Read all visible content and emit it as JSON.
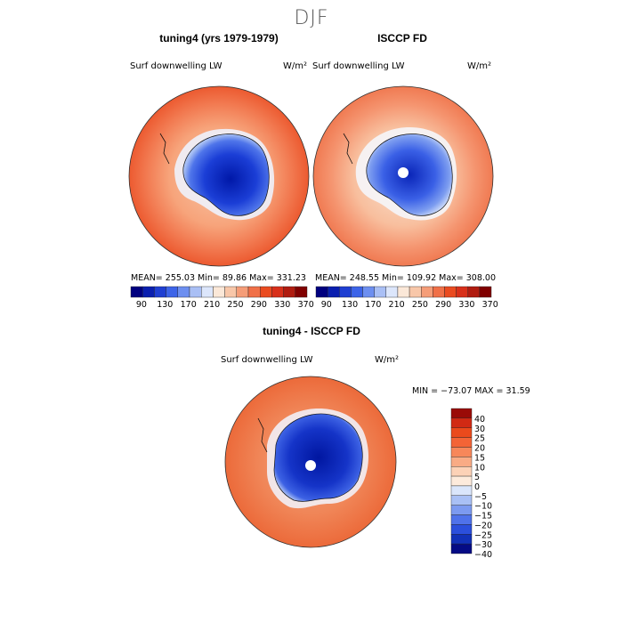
{
  "figure": {
    "title": "DJF"
  },
  "panels": [
    {
      "title": "tuning4 (yrs 1979-1979)",
      "variable": "Surf downwelling LW",
      "units": "W/m²",
      "stats": "MEAN= 255.03   Min=   89.86   Max=  331.23"
    },
    {
      "title": "ISCCP FD",
      "variable": "Surf downwelling LW",
      "units": "W/m²",
      "stats": "MEAN= 248.55   Min=  109.92   Max=  308.00"
    },
    {
      "title": "tuning4 - ISCCP FD",
      "variable": "Surf downwelling LW",
      "units": "W/m²",
      "stats": "MIN = −73.07  MAX =   31.59"
    }
  ],
  "colorbar_top": {
    "ticks": [
      "90",
      "130",
      "170",
      "210",
      "250",
      "290",
      "330",
      "370"
    ],
    "colors": [
      "#00007f",
      "#0a1faf",
      "#1f3fd2",
      "#3d64e8",
      "#6d8ff0",
      "#a9bff5",
      "#dce6fb",
      "#fbe8d8",
      "#f8c7a9",
      "#f59d78",
      "#f07048",
      "#ea4b20",
      "#d8301a",
      "#b01c10",
      "#800000"
    ]
  },
  "colorbar_diff": {
    "levels": [
      "40",
      "30",
      "25",
      "20",
      "15",
      "10",
      "5",
      "0",
      "−5",
      "−10",
      "−15",
      "−20",
      "−25",
      "−30",
      "−40"
    ],
    "colors": [
      "#9a0b07",
      "#d12a14",
      "#ea4a1c",
      "#f36436",
      "#f7875a",
      "#f9ab85",
      "#fcd2b7",
      "#fdebdc",
      "#dae6fb",
      "#a9c0f5",
      "#7c9af0",
      "#4f72ea",
      "#2b4fdc",
      "#1231b8",
      "#050b85"
    ]
  }
}
